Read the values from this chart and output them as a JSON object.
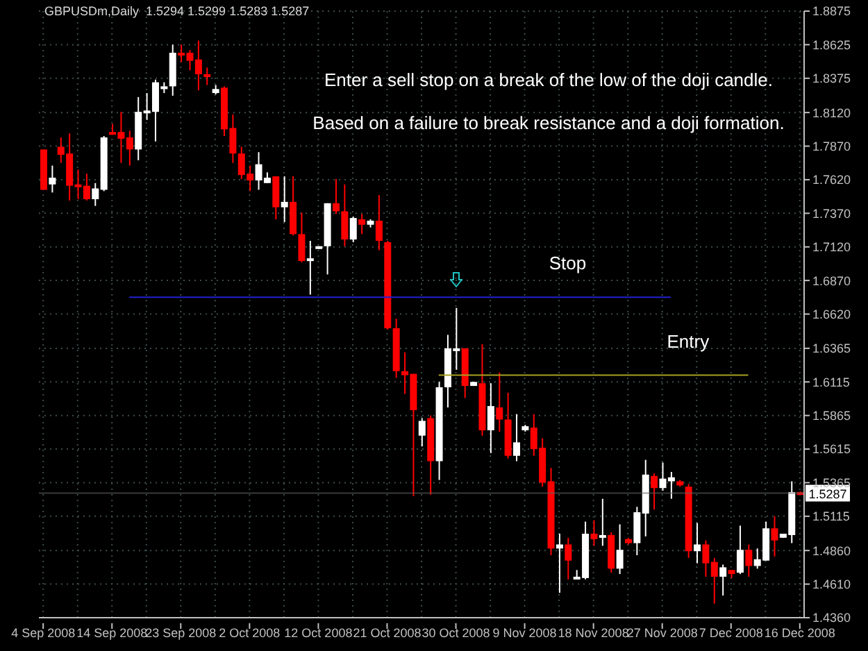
{
  "chart_data": {
    "type": "candlestick",
    "title": "GBPUSDm,Daily  1.5294 1.5299 1.5283 1.5287",
    "annotations": [
      "Enter a sell stop on a break of the low of the doji candle.",
      "Based on a failure to break resistance and a doji formation."
    ],
    "categories": [
      "4 Sep 2008",
      null,
      null,
      null,
      null,
      null,
      null,
      null,
      "14 Sep 2008",
      null,
      null,
      null,
      null,
      null,
      null,
      null,
      "23 Sep 2008",
      null,
      null,
      null,
      null,
      null,
      null,
      null,
      "2 Oct 2008",
      null,
      null,
      null,
      null,
      null,
      null,
      null,
      "12 Oct 2008",
      null,
      null,
      null,
      null,
      null,
      null,
      null,
      "21 Oct 2008",
      null,
      null,
      null,
      null,
      null,
      null,
      null,
      "30 Oct 2008",
      null,
      null,
      null,
      null,
      null,
      null,
      null,
      "9 Nov 2008",
      null,
      null,
      null,
      null,
      null,
      null,
      null,
      "18 Nov 2008",
      null,
      null,
      null,
      null,
      null,
      null,
      null,
      "27 Nov 2008",
      null,
      null,
      null,
      null,
      null,
      null,
      null,
      "7 Dec 2008",
      null,
      null,
      null,
      null,
      null,
      null,
      null,
      "16 Dec 2008"
    ],
    "ohlc": [
      [
        1.7845,
        1.7845,
        1.7545,
        1.7545
      ],
      [
        1.7585,
        1.7725,
        1.7525,
        1.7635
      ],
      [
        1.7865,
        1.7935,
        1.7745,
        1.7805
      ],
      [
        1.7815,
        1.7965,
        1.7465,
        1.7575
      ],
      [
        1.7585,
        1.7695,
        1.7475,
        1.7565
      ],
      [
        1.7575,
        1.7665,
        1.7465,
        1.7475
      ],
      [
        1.7475,
        1.7595,
        1.7425,
        1.7555
      ],
      [
        1.7545,
        1.7945,
        1.7535,
        1.7935
      ],
      [
        1.7975,
        1.8035,
        1.7955,
        1.7965
      ],
      [
        1.7975,
        1.8125,
        1.7745,
        1.7925
      ],
      [
        1.7935,
        1.7985,
        1.7725,
        1.7845
      ],
      [
        1.7845,
        1.8235,
        1.7765,
        1.8125
      ],
      [
        1.8115,
        1.8265,
        1.8065,
        1.8135
      ],
      [
        1.8125,
        1.8365,
        1.7905,
        1.8345
      ],
      [
        1.8295,
        1.8345,
        1.8265,
        1.8315
      ],
      [
        1.8315,
        1.8625,
        1.8245,
        1.8565
      ],
      [
        1.8565,
        1.8625,
        1.8495,
        1.8545
      ],
      [
        1.8565,
        1.8585,
        1.8435,
        1.8505
      ],
      [
        1.8515,
        1.8655,
        1.8285,
        1.8405
      ],
      [
        1.8405,
        1.8455,
        1.8325,
        1.8395
      ],
      [
        1.8265,
        1.8325,
        1.8255,
        1.8295
      ],
      [
        1.8305,
        1.8315,
        1.7945,
        1.7995
      ],
      [
        1.8005,
        1.8105,
        1.7745,
        1.7815
      ],
      [
        1.7815,
        1.7865,
        1.7625,
        1.7655
      ],
      [
        1.7665,
        1.7725,
        1.7535,
        1.7615
      ],
      [
        1.7615,
        1.7825,
        1.7545,
        1.7735
      ],
      [
        1.7595,
        1.7675,
        1.7595,
        1.7635
      ],
      [
        1.7645,
        1.7645,
        1.7325,
        1.7415
      ],
      [
        1.7415,
        1.7645,
        1.7305,
        1.7455
      ],
      [
        1.7455,
        1.7645,
        1.7205,
        1.7215
      ],
      [
        1.7215,
        1.7375,
        1.7005,
        1.7015
      ],
      [
        1.7015,
        1.7165,
        1.6765,
        1.7035
      ],
      [
        1.7105,
        1.7125,
        1.7105,
        1.7125
      ],
      [
        1.7125,
        1.7445,
        1.6915,
        1.7445
      ],
      [
        1.7445,
        1.7625,
        1.7365,
        1.7385
      ],
      [
        1.7385,
        1.7585,
        1.7125,
        1.7175
      ],
      [
        1.7175,
        1.7345,
        1.7155,
        1.7335
      ],
      [
        1.7325,
        1.7365,
        1.7215,
        1.7285
      ],
      [
        1.7285,
        1.7325,
        1.7265,
        1.7315
      ],
      [
        1.7315,
        1.7505,
        1.7095,
        1.7165
      ],
      [
        1.7155,
        1.7165,
        1.6505,
        1.6515
      ],
      [
        1.6515,
        1.6585,
        1.6145,
        1.6195
      ],
      [
        1.6195,
        1.6335,
        1.6025,
        1.6165
      ],
      [
        1.6175,
        1.6175,
        1.5265,
        1.5905
      ],
      [
        1.5715,
        1.5845,
        1.5635,
        1.5825
      ],
      [
        1.5845,
        1.5865,
        1.5275,
        1.5525
      ],
      [
        1.5525,
        1.6115,
        1.5385,
        1.6075
      ],
      [
        1.6075,
        1.6465,
        1.5925,
        1.6365
      ],
      [
        1.6355,
        1.6665,
        1.6205,
        1.6365
      ],
      [
        1.6365,
        1.6365,
        1.5995,
        1.6085
      ],
      [
        1.6085,
        1.6115,
        1.6085,
        1.6115
      ],
      [
        1.6105,
        1.6395,
        1.5715,
        1.5755
      ],
      [
        1.5755,
        1.6105,
        1.5585,
        1.5935
      ],
      [
        1.5925,
        1.6185,
        1.5745,
        1.5835
      ],
      [
        1.5835,
        1.6035,
        1.5545,
        1.5565
      ],
      [
        1.5565,
        1.5875,
        1.5525,
        1.5665
      ],
      [
        1.5755,
        1.5795,
        1.5745,
        1.5785
      ],
      [
        1.5775,
        1.5875,
        1.5565,
        1.5615
      ],
      [
        1.5625,
        1.5695,
        1.5335,
        1.5365
      ],
      [
        1.5375,
        1.5475,
        1.4825,
        1.4875
      ],
      [
        1.4875,
        1.4985,
        1.4545,
        1.4905
      ],
      [
        1.4905,
        1.4955,
        1.4645,
        1.4785
      ],
      [
        1.4655,
        1.4715,
        1.4655,
        1.4665
      ],
      [
        1.4655,
        1.5075,
        1.4645,
        1.4985
      ],
      [
        1.4985,
        1.5085,
        1.4895,
        1.4945
      ],
      [
        1.4955,
        1.5245,
        1.4895,
        1.4975
      ],
      [
        1.4975,
        1.4995,
        1.4695,
        1.4725
      ],
      [
        1.4725,
        1.5055,
        1.4685,
        1.4865
      ],
      [
        1.4945,
        1.4955,
        1.4905,
        1.4915
      ],
      [
        1.4915,
        1.5185,
        1.4825,
        1.5145
      ],
      [
        1.5135,
        1.5535,
        1.4965,
        1.5425
      ],
      [
        1.5415,
        1.5435,
        1.5165,
        1.5325
      ],
      [
        1.5325,
        1.5515,
        1.5305,
        1.5395
      ],
      [
        1.5375,
        1.5445,
        1.5245,
        1.5405
      ],
      [
        1.5375,
        1.5385,
        1.5335,
        1.5345
      ],
      [
        1.5335,
        1.5355,
        1.4805,
        1.4855
      ],
      [
        1.4855,
        1.5065,
        1.4765,
        1.4905
      ],
      [
        1.4905,
        1.4935,
        1.4665,
        1.4765
      ],
      [
        1.4775,
        1.4805,
        1.4465,
        1.4665
      ],
      [
        1.4665,
        1.4755,
        1.4525,
        1.4735
      ],
      [
        1.4715,
        1.4715,
        1.4655,
        1.4685
      ],
      [
        1.4695,
        1.5045,
        1.4685,
        1.4865
      ],
      [
        1.4865,
        1.4905,
        1.4665,
        1.4745
      ],
      [
        1.4745,
        1.4875,
        1.4725,
        1.4795
      ],
      [
        1.4785,
        1.5075,
        1.4785,
        1.5025
      ],
      [
        1.5025,
        1.5115,
        1.4815,
        1.4935
      ],
      [
        1.4955,
        1.4985,
        1.4955,
        1.4985
      ],
      [
        1.4975,
        1.5375,
        1.4915,
        1.5295
      ],
      [
        1.5294,
        1.5299,
        1.5283,
        1.5287
      ]
    ],
    "colors": [
      "#ff0000",
      "#ffffff",
      "#ff0000",
      "#ff0000",
      "#ff0000",
      "#ff0000",
      "#ffffff",
      "#ffffff",
      "#ff0000",
      "#ff0000",
      "#ff0000",
      "#ffffff",
      "#ffffff",
      "#ffffff",
      "#ffffff",
      "#ffffff",
      "#ff0000",
      "#ff0000",
      "#ff0000",
      "#ff0000",
      "#ffffff",
      "#ff0000",
      "#ff0000",
      "#ff0000",
      "#ff0000",
      "#ffffff",
      "#ffffff",
      "#ff0000",
      "#ffffff",
      "#ff0000",
      "#ff0000",
      "#ffffff",
      "#ffffff",
      "#ffffff",
      "#ff0000",
      "#ff0000",
      "#ffffff",
      "#ff0000",
      "#ffffff",
      "#ff0000",
      "#ff0000",
      "#ff0000",
      "#ff0000",
      "#ff0000",
      "#ffffff",
      "#ff0000",
      "#ffffff",
      "#ffffff",
      "#ffffff",
      "#ff0000",
      "#ffffff",
      "#ff0000",
      "#ffffff",
      "#ff0000",
      "#ff0000",
      "#ffffff",
      "#ffffff",
      "#ff0000",
      "#ff0000",
      "#ff0000",
      "#ffffff",
      "#ff0000",
      "#ffffff",
      "#ffffff",
      "#ff0000",
      "#ffffff",
      "#ff0000",
      "#ffffff",
      "#ff0000",
      "#ffffff",
      "#ffffff",
      "#ff0000",
      "#ffffff",
      "#ffffff",
      "#ff0000",
      "#ff0000",
      "#ffffff",
      "#ff0000",
      "#ff0000",
      "#ffffff",
      "#ff0000",
      "#ffffff",
      "#ff0000",
      "#ffffff",
      "#ffffff",
      "#ff0000",
      "#ffffff",
      "#ffffff",
      "#ff0000"
    ],
    "series": [
      {
        "name": "Stop",
        "type": "line",
        "color": "#2020d0",
        "values": [
          null,
          null,
          null,
          null,
          null,
          null,
          null,
          null,
          null,
          null,
          1.6745,
          1.6745,
          1.6745,
          1.6745,
          1.6745,
          1.6745,
          1.6745,
          1.6745,
          1.6745,
          1.6745,
          1.6745,
          1.6745,
          1.6745,
          1.6745,
          1.6745,
          1.6745,
          1.6745,
          1.6745,
          1.6745,
          1.6745,
          1.6745,
          1.6745,
          1.6745,
          1.6745,
          1.6745,
          1.6745,
          1.6745,
          1.6745,
          1.6745,
          1.6745,
          1.6745,
          1.6745,
          1.6745,
          1.6745,
          1.6745,
          1.6745,
          1.6745,
          1.6745,
          1.6745,
          1.6745,
          1.6745,
          1.6745,
          1.6745,
          1.6745,
          1.6745,
          1.6745,
          1.6745,
          1.6745,
          1.6745,
          1.6745,
          1.6745,
          1.6745,
          1.6745,
          1.6745,
          1.6745,
          1.6745,
          1.6745,
          1.6745,
          1.6745,
          1.6745,
          1.6745,
          1.6745,
          1.6745,
          1.6745,
          null,
          null,
          null,
          null,
          null,
          null,
          null,
          null,
          null,
          null,
          null,
          null,
          null,
          null,
          null
        ]
      },
      {
        "name": "Entry",
        "type": "line",
        "color": "#a8a020",
        "values": [
          null,
          null,
          null,
          null,
          null,
          null,
          null,
          null,
          null,
          null,
          null,
          null,
          null,
          null,
          null,
          null,
          null,
          null,
          null,
          null,
          null,
          null,
          null,
          null,
          null,
          null,
          null,
          null,
          null,
          null,
          null,
          null,
          null,
          null,
          null,
          null,
          null,
          null,
          null,
          null,
          null,
          null,
          null,
          null,
          null,
          null,
          1.6165,
          1.6165,
          1.6165,
          1.6165,
          1.6165,
          1.6165,
          1.6165,
          1.6165,
          1.6165,
          1.6165,
          1.6165,
          1.6165,
          1.6165,
          1.6165,
          1.6165,
          1.6165,
          1.6165,
          1.6165,
          1.6165,
          1.6165,
          1.6165,
          1.6165,
          1.6165,
          1.6165,
          1.6165,
          1.6165,
          1.6165,
          1.6165,
          1.6165,
          1.6165,
          1.6165,
          1.6165,
          1.6165,
          1.6165,
          1.6165,
          1.6165,
          1.6165,
          null,
          null,
          null,
          null,
          null,
          null
        ]
      }
    ],
    "ref_lines": [
      {
        "axis": "y",
        "value": 1.5287,
        "label": "1.5287",
        "color": "#606060"
      }
    ],
    "ylim": [
      1.436,
      1.8875
    ],
    "yticks": [
      {
        "value": 1.436,
        "label": "1.4360"
      },
      {
        "value": 1.461,
        "label": "1.4610"
      },
      {
        "value": 1.486,
        "label": "1.4860"
      },
      1.5115,
      1.5365,
      1.5615,
      1.5865,
      1.6115,
      1.6365,
      {
        "value": 1.662,
        "label": "1.6620"
      },
      {
        "value": 1.687,
        "label": "1.6870"
      },
      {
        "value": 1.712,
        "label": "1.7120"
      },
      {
        "value": 1.737,
        "label": "1.7370"
      },
      {
        "value": 1.762,
        "label": "1.7620"
      },
      {
        "value": 1.787,
        "label": "1.7870"
      },
      {
        "value": 1.812,
        "label": "1.8120"
      },
      1.8375,
      1.8625,
      1.8875
    ],
    "grid": true
  }
}
